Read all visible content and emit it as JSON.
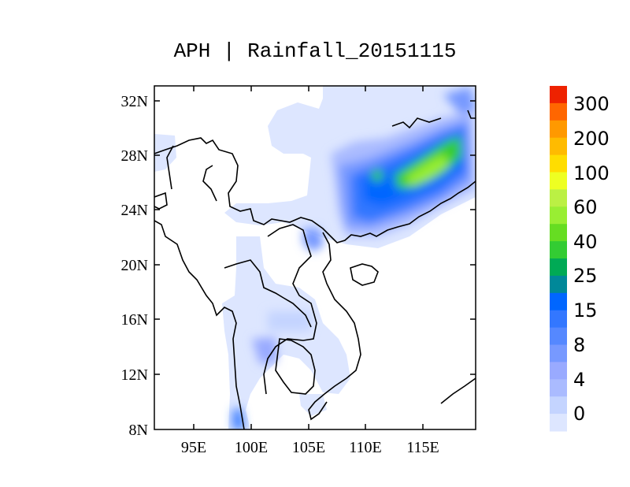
{
  "title": "APH | Rainfall_20151115",
  "map": {
    "x_ticks": [
      "95E",
      "100E",
      "105E",
      "110E",
      "115E"
    ],
    "y_ticks": [
      "32N",
      "28N",
      "24N",
      "20N",
      "16N",
      "12N",
      "8N"
    ],
    "lon_range": [
      91,
      119.5
    ],
    "lat_range": [
      8,
      33
    ]
  },
  "colorbar": {
    "labels": [
      "300",
      "200",
      "100",
      "60",
      "40",
      "25",
      "15",
      "8",
      "4",
      "0"
    ],
    "colors": [
      "#ee2200",
      "#ff6600",
      "#ff9900",
      "#ffbb00",
      "#ffdd00",
      "#eeff22",
      "#bbf044",
      "#99ee33",
      "#66dd22",
      "#33cc33",
      "#00aa55",
      "#008899",
      "#0066ff",
      "#3377ff",
      "#5588ff",
      "#7799ff",
      "#99aaff",
      "#aabbff",
      "#c4d4ff",
      "#dde6ff"
    ]
  }
}
